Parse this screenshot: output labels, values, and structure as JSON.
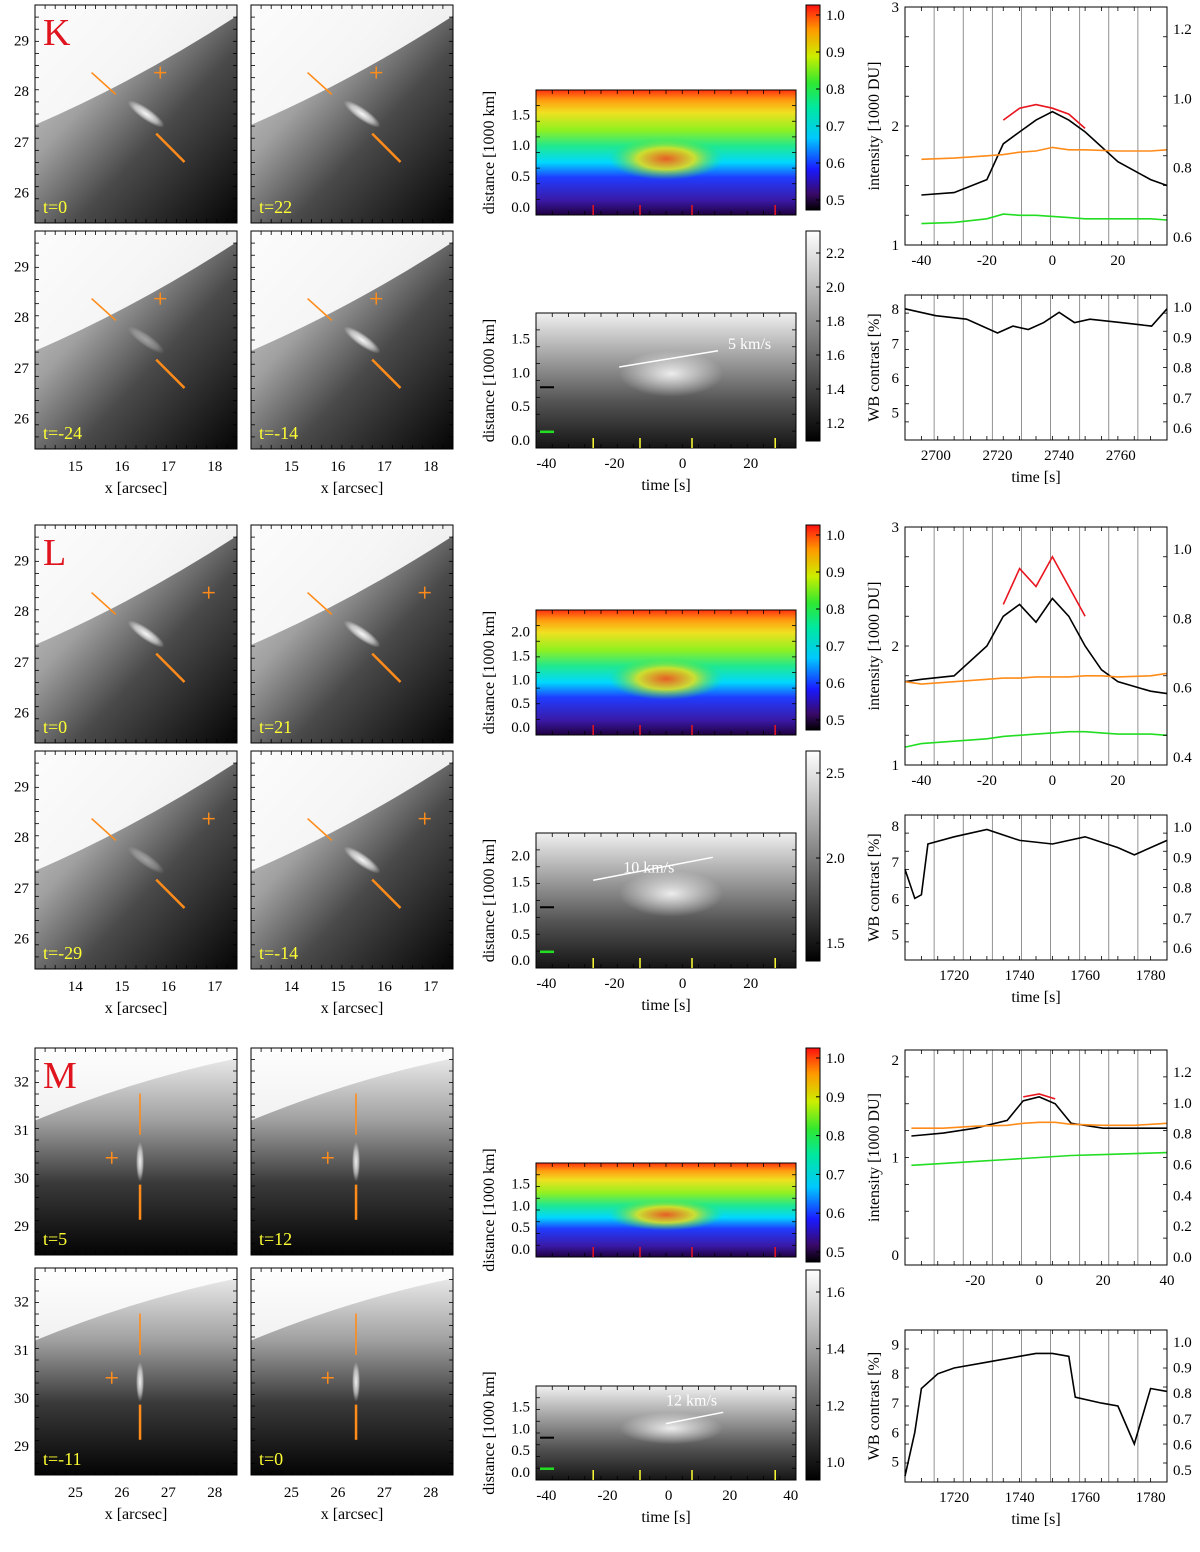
{
  "rows": [
    {
      "id": "K",
      "letter": "K",
      "image_panels": {
        "xticks": [
          "15",
          "16",
          "17",
          "18"
        ],
        "yticks": [
          "26",
          "27",
          "28",
          "29"
        ],
        "xlabel": "x [arcsec]",
        "time_labels": [
          "t=0",
          "t=22",
          "t=-24",
          "t=-14"
        ]
      },
      "color_xt": {
        "ylabel": "distance [1000 km]",
        "yticks": [
          "0.0",
          "0.5",
          "1.0",
          "1.5"
        ],
        "colorbar_ticks": [
          "0.5",
          "0.6",
          "0.7",
          "0.8",
          "0.9",
          "1.0"
        ]
      },
      "gray_xt": {
        "ylabel": "distance [1000 km]",
        "yticks": [
          "0.0",
          "0.5",
          "1.0",
          "1.5"
        ],
        "xticks": [
          "-40",
          "-20",
          "0",
          "20"
        ],
        "xlabel": "time [s]",
        "colorbar_ticks": [
          "1.2",
          "1.4",
          "1.6",
          "1.8",
          "2.0",
          "2.2"
        ],
        "speed_label": "5 km/s"
      },
      "lightcurve": {
        "ylabel": "intensity [1000 DU]",
        "yticks_left": [
          "1",
          "2",
          "3"
        ],
        "yticks_right": [
          "0.6",
          "0.8",
          "1.0",
          "1.2"
        ],
        "xticks_top": [
          "-40",
          "-20",
          "0",
          "20"
        ]
      },
      "contrast": {
        "ylabel": "WB contrast [%]",
        "yticks_left": [
          "5",
          "6",
          "7",
          "8"
        ],
        "yticks_right": [
          "0.6",
          "0.7",
          "0.8",
          "0.9",
          "1.0"
        ],
        "xticks": [
          "2700",
          "2720",
          "2740",
          "2760"
        ],
        "xlabel": "time [s]"
      }
    },
    {
      "id": "L",
      "letter": "L",
      "image_panels": {
        "xticks": [
          "14",
          "15",
          "16",
          "17"
        ],
        "yticks": [
          "26",
          "27",
          "28",
          "29"
        ],
        "xlabel": "x [arcsec]",
        "time_labels": [
          "t=0",
          "t=21",
          "t=-29",
          "t=-14"
        ]
      },
      "color_xt": {
        "ylabel": "distance [1000 km]",
        "yticks": [
          "0.0",
          "0.5",
          "1.0",
          "1.5",
          "2.0"
        ],
        "colorbar_ticks": [
          "0.5",
          "0.6",
          "0.7",
          "0.8",
          "0.9",
          "1.0"
        ]
      },
      "gray_xt": {
        "ylabel": "distance [1000 km]",
        "yticks": [
          "0.0",
          "0.5",
          "1.0",
          "1.5",
          "2.0"
        ],
        "xticks": [
          "-40",
          "-20",
          "0",
          "20"
        ],
        "xlabel": "time [s]",
        "colorbar_ticks": [
          "1.5",
          "2.0",
          "2.5"
        ],
        "speed_label": "10 km/s"
      },
      "lightcurve": {
        "ylabel": "intensity [1000 DU]",
        "yticks_left": [
          "1",
          "2",
          "3"
        ],
        "yticks_right": [
          "0.4",
          "0.6",
          "0.8",
          "1.0"
        ],
        "xticks_top": [
          "-40",
          "-20",
          "0",
          "20"
        ]
      },
      "contrast": {
        "ylabel": "WB contrast [%]",
        "yticks_left": [
          "5",
          "6",
          "7",
          "8"
        ],
        "yticks_right": [
          "0.6",
          "0.7",
          "0.8",
          "0.9",
          "1.0"
        ],
        "xticks": [
          "1720",
          "1740",
          "1760",
          "1780"
        ],
        "xlabel": "time [s]"
      }
    },
    {
      "id": "M",
      "letter": "M",
      "image_panels": {
        "xticks": [
          "25",
          "26",
          "27",
          "28"
        ],
        "yticks": [
          "29",
          "30",
          "31",
          "32"
        ],
        "xlabel": "x [arcsec]",
        "time_labels": [
          "t=5",
          "t=12",
          "t=-11",
          "t=0"
        ]
      },
      "color_xt": {
        "ylabel": "distance [1000 km]",
        "yticks": [
          "0.0",
          "0.5",
          "1.0",
          "1.5"
        ],
        "colorbar_ticks": [
          "0.5",
          "0.6",
          "0.7",
          "0.8",
          "0.9",
          "1.0"
        ]
      },
      "gray_xt": {
        "ylabel": "distance [1000 km]",
        "yticks": [
          "0.0",
          "0.5",
          "1.0",
          "1.5"
        ],
        "xticks": [
          "-40",
          "-20",
          "0",
          "20",
          "40"
        ],
        "xlabel": "time [s]",
        "colorbar_ticks": [
          "1.0",
          "1.2",
          "1.4",
          "1.6"
        ],
        "speed_label": "12 km/s"
      },
      "lightcurve": {
        "ylabel": "intensity [1000 DU]",
        "yticks_left": [
          "0",
          "1",
          "2"
        ],
        "yticks_right": [
          "0.0",
          "0.2",
          "0.4",
          "0.6",
          "0.8",
          "1.0",
          "1.2"
        ],
        "xticks_top": [
          "-20",
          "0",
          "20",
          "40"
        ]
      },
      "contrast": {
        "ylabel": "WB contrast [%]",
        "yticks_left": [
          "5",
          "6",
          "7",
          "8",
          "9"
        ],
        "yticks_right": [
          "0.5",
          "0.6",
          "0.7",
          "0.8",
          "0.9",
          "1.0"
        ],
        "xticks": [
          "1720",
          "1740",
          "1760",
          "1780"
        ],
        "xlabel": "time [s]"
      }
    }
  ],
  "colors": {
    "orange": "#ff8c1a",
    "red": "#e8141e",
    "green": "#22dd22",
    "yellow": "#ffff33",
    "black": "#000000"
  },
  "chart_data": [
    {
      "type": "line",
      "panel": "K-intensity",
      "x": [
        -40,
        -30,
        -20,
        -15,
        -10,
        -5,
        0,
        5,
        10,
        20,
        30,
        35
      ],
      "series": [
        {
          "values": [
            1.42,
            1.44,
            1.55,
            1.85,
            1.95,
            2.05,
            2.12,
            2.05,
            1.95,
            1.7,
            1.55,
            1.5
          ]
        },
        {
          "values": [
            null,
            null,
            null,
            2.05,
            2.15,
            2.18,
            2.15,
            2.1,
            1.98,
            null,
            null,
            null
          ]
        },
        {
          "values": [
            1.72,
            1.73,
            1.75,
            1.76,
            1.78,
            1.79,
            1.82,
            1.8,
            1.8,
            1.79,
            1.79,
            1.8
          ]
        },
        {
          "values": [
            1.18,
            1.19,
            1.22,
            1.26,
            1.25,
            1.25,
            1.24,
            1.23,
            1.22,
            1.22,
            1.22,
            1.21
          ]
        }
      ],
      "ylim": [
        1,
        3
      ],
      "xlim": [
        -45,
        35
      ]
    },
    {
      "type": "line",
      "panel": "K-contrast",
      "x": [
        2690,
        2700,
        2710,
        2720,
        2725,
        2730,
        2735,
        2740,
        2745,
        2750,
        2760,
        2770,
        2775
      ],
      "series": [
        {
          "values": [
            8.0,
            7.8,
            7.7,
            7.3,
            7.5,
            7.4,
            7.6,
            7.9,
            7.6,
            7.7,
            7.6,
            7.5,
            8.0
          ]
        }
      ],
      "ylim": [
        4.2,
        8.4
      ],
      "xlim": [
        2690,
        2775
      ]
    },
    {
      "type": "line",
      "panel": "L-intensity",
      "x": [
        -45,
        -40,
        -30,
        -20,
        -15,
        -10,
        -5,
        0,
        5,
        10,
        15,
        20,
        30,
        35
      ],
      "series": [
        {
          "values": [
            1.7,
            1.72,
            1.75,
            2.0,
            2.25,
            2.35,
            2.2,
            2.4,
            2.25,
            2.0,
            1.8,
            1.7,
            1.62,
            1.6
          ]
        },
        {
          "values": [
            null,
            null,
            null,
            null,
            2.35,
            2.65,
            2.5,
            2.75,
            2.5,
            2.25,
            null,
            null,
            null,
            null
          ]
        },
        {
          "values": [
            1.7,
            1.68,
            1.7,
            1.72,
            1.73,
            1.73,
            1.74,
            1.74,
            1.74,
            1.75,
            1.75,
            1.74,
            1.75,
            1.77
          ]
        },
        {
          "values": [
            1.15,
            1.18,
            1.2,
            1.22,
            1.24,
            1.25,
            1.26,
            1.27,
            1.28,
            1.28,
            1.27,
            1.26,
            1.26,
            1.25
          ]
        }
      ],
      "ylim": [
        1,
        3
      ],
      "xlim": [
        -45,
        35
      ]
    },
    {
      "type": "line",
      "panel": "L-contrast",
      "x": [
        1705,
        1708,
        1710,
        1712,
        1720,
        1730,
        1740,
        1750,
        1760,
        1770,
        1775,
        1785
      ],
      "series": [
        {
          "values": [
            6.8,
            6.0,
            6.1,
            7.5,
            7.7,
            7.9,
            7.6,
            7.5,
            7.7,
            7.4,
            7.2,
            7.6
          ]
        }
      ],
      "ylim": [
        4.3,
        8.3
      ],
      "xlim": [
        1705,
        1785
      ]
    },
    {
      "type": "line",
      "panel": "M-intensity",
      "x": [
        -40,
        -30,
        -20,
        -10,
        -5,
        0,
        5,
        10,
        20,
        30,
        40
      ],
      "series": [
        {
          "values": [
            1.22,
            1.25,
            1.3,
            1.38,
            1.58,
            1.62,
            1.55,
            1.35,
            1.3,
            1.3,
            1.3
          ]
        },
        {
          "values": [
            null,
            null,
            null,
            null,
            1.62,
            1.65,
            1.6,
            null,
            null,
            null,
            null
          ]
        },
        {
          "values": [
            1.3,
            1.3,
            1.32,
            1.33,
            1.35,
            1.36,
            1.36,
            1.34,
            1.33,
            1.33,
            1.35
          ]
        },
        {
          "values": [
            0.92,
            0.94,
            0.96,
            0.98,
            0.99,
            1.0,
            1.01,
            1.02,
            1.03,
            1.04,
            1.05
          ]
        }
      ],
      "ylim": [
        -0.1,
        2.1
      ],
      "xlim": [
        -42,
        40
      ]
    },
    {
      "type": "line",
      "panel": "M-contrast",
      "x": [
        1705,
        1708,
        1710,
        1715,
        1720,
        1730,
        1740,
        1745,
        1750,
        1755,
        1757,
        1765,
        1770,
        1775,
        1780,
        1785
      ],
      "series": [
        {
          "values": [
            4.5,
            6.0,
            7.5,
            8.0,
            8.2,
            8.4,
            8.6,
            8.7,
            8.7,
            8.6,
            7.2,
            7.0,
            6.9,
            5.6,
            7.5,
            7.4
          ]
        }
      ],
      "ylim": [
        4.3,
        9.5
      ],
      "xlim": [
        1705,
        1785
      ]
    }
  ]
}
